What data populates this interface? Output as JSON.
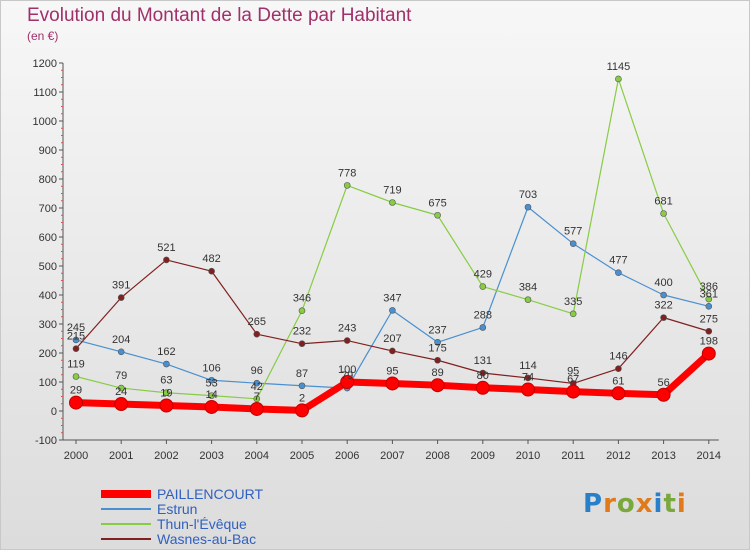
{
  "title": "Evolution du Montant de la Dette par Habitant",
  "unit_label": "(en €)",
  "logo_text": "Proxiti",
  "chart_data": {
    "type": "line",
    "title": "Evolution du Montant de la Dette par Habitant",
    "subtitle": "(en €)",
    "x": [
      2000,
      2001,
      2002,
      2003,
      2004,
      2005,
      2006,
      2007,
      2008,
      2009,
      2010,
      2011,
      2012,
      2013,
      2014
    ],
    "ylim": [
      -100,
      1200
    ],
    "yticks": [
      -100,
      0,
      100,
      200,
      300,
      400,
      500,
      600,
      700,
      800,
      900,
      1000,
      1100,
      1200
    ],
    "grid": false,
    "legend_position": "bottom-left",
    "series": [
      {
        "name": "PAILLENCOURT",
        "color": "#ff0000",
        "values": [
          29,
          24,
          19,
          14,
          7,
          2,
          100,
          95,
          89,
          80,
          74,
          67,
          61,
          56,
          198
        ]
      },
      {
        "name": "Estrun",
        "color": "#4a90d0",
        "values": [
          245,
          204,
          162,
          106,
          96,
          87,
          79,
          347,
          237,
          288,
          703,
          577,
          477,
          400,
          361
        ]
      },
      {
        "name": "Thun-l'Évêque",
        "color": "#88cc44",
        "values": [
          119,
          79,
          63,
          53,
          42,
          346,
          778,
          719,
          675,
          429,
          384,
          335,
          1145,
          681,
          386
        ]
      },
      {
        "name": "Wasnes-au-Bac",
        "color": "#802020",
        "values": [
          215,
          391,
          521,
          482,
          265,
          232,
          243,
          207,
          175,
          131,
          114,
          95,
          146,
          322,
          275
        ]
      }
    ]
  }
}
